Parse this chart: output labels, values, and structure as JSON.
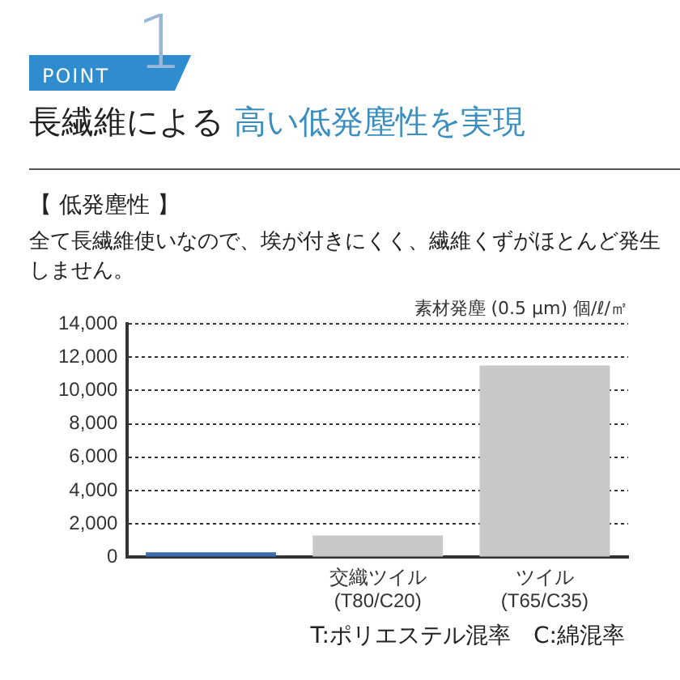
{
  "chart_data": {
    "type": "bar",
    "title": "長繊維による 高い低発塵性を実現",
    "subtitle": "【 低発塵性 】",
    "ylabel": "素材発塵 (0.5 μm) 個/ℓ/㎡",
    "annotations": [
      "POINT",
      "1",
      "全て長繊維使いなので、埃が付きにくく、繊維くずがほとんど発生しません。",
      "T:ポリエステル混率　C:綿混率"
    ],
    "categories": [
      null,
      "交織ツイル\n(T80/C20)",
      "ツイル\n(T65/C35)"
    ],
    "values": [
      300,
      1300,
      11500
    ],
    "colors": [
      "#3b6bb0",
      "#c8c8c8",
      "#c8c8c8"
    ],
    "ylim": [
      0,
      14000
    ],
    "yticks": [
      0,
      {
        "value": 2000,
        "label": "2,000"
      },
      {
        "value": 4000,
        "label": "4,000"
      },
      {
        "value": 6000,
        "label": "6,000"
      },
      {
        "value": 8000,
        "label": "8,000"
      },
      {
        "value": 10000,
        "label": "10,000"
      },
      {
        "value": 12000,
        "label": "12,000"
      },
      {
        "value": 14000,
        "label": "14,000"
      }
    ],
    "grid": "y"
  }
}
